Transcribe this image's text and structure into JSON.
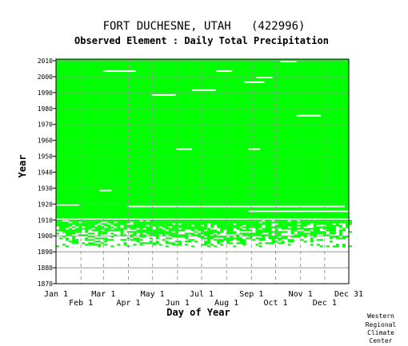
{
  "chart_data": {
    "type": "heatmap",
    "title": "FORT DUCHESNE, UTAH   (422996)",
    "subtitle": "Observed Element : Daily Total Precipitation",
    "xlabel": "Day of Year",
    "ylabel": "Year",
    "xlim": [
      1,
      365
    ],
    "ylim": [
      1870,
      2011
    ],
    "x_ticks_upper": [
      {
        "label": "Jan 1",
        "day": 1
      },
      {
        "label": "Mar 1",
        "day": 60
      },
      {
        "label": "May 1",
        "day": 121
      },
      {
        "label": "Jul 1",
        "day": 182
      },
      {
        "label": "Sep 1",
        "day": 244
      },
      {
        "label": "Nov 1",
        "day": 305
      },
      {
        "label": "Dec 31",
        "day": 365
      }
    ],
    "x_ticks_lower": [
      {
        "label": "Feb 1",
        "day": 32
      },
      {
        "label": "Apr 1",
        "day": 91
      },
      {
        "label": "Jun 1",
        "day": 152
      },
      {
        "label": "Aug 1",
        "day": 213
      },
      {
        "label": "Oct 1",
        "day": 274
      },
      {
        "label": "Dec 1",
        "day": 335
      }
    ],
    "y_ticks": [
      1870,
      1880,
      1890,
      1900,
      1910,
      1920,
      1930,
      1940,
      1950,
      1960,
      1970,
      1980,
      1990,
      2000,
      2010
    ],
    "grid": true,
    "colors": {
      "data": "#00ff00",
      "missing": "#ffffff",
      "grid": "#999999",
      "frame": "#000000"
    },
    "data_coverage": {
      "full_years": [
        1910,
        2010
      ],
      "partial_years": [
        1893,
        1909
      ],
      "gap_strips": [
        {
          "year": 2009,
          "day_start": 280,
          "day_end": 300
        },
        {
          "year": 2003,
          "day_start": 200,
          "day_end": 220
        },
        {
          "year": 2003,
          "day_start": 60,
          "day_end": 100
        },
        {
          "year": 1999,
          "day_start": 250,
          "day_end": 270
        },
        {
          "year": 1996,
          "day_start": 235,
          "day_end": 260
        },
        {
          "year": 1991,
          "day_start": 170,
          "day_end": 200
        },
        {
          "year": 1988,
          "day_start": 120,
          "day_end": 150
        },
        {
          "year": 1975,
          "day_start": 300,
          "day_end": 330
        },
        {
          "year": 1954,
          "day_start": 150,
          "day_end": 170
        },
        {
          "year": 1954,
          "day_start": 240,
          "day_end": 255
        },
        {
          "year": 1928,
          "day_start": 55,
          "day_end": 70
        },
        {
          "year": 1919,
          "day_start": 1,
          "day_end": 30
        },
        {
          "year": 1918,
          "day_start": 90,
          "day_end": 360
        },
        {
          "year": 1915,
          "day_start": 240,
          "day_end": 365
        },
        {
          "year": 1910,
          "day_start": 1,
          "day_end": 365
        }
      ]
    }
  },
  "footer": {
    "line1": "Western",
    "line2": "Regional",
    "line3": "Climate",
    "line4": "Center"
  }
}
